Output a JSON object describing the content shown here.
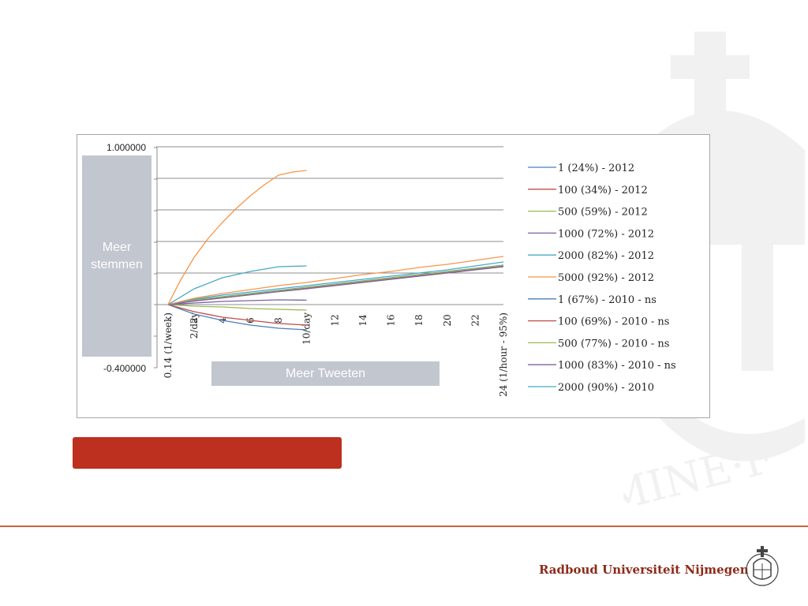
{
  "chart_data": {
    "type": "line",
    "x_tick_labels_upright": [
      "2",
      "4",
      "6",
      "8",
      "12",
      "14",
      "16",
      "18",
      "20",
      "22"
    ],
    "x_tick_labels_rotated": [
      "0.14 (1/week)",
      "2/day",
      "10/day",
      "24 (1/hour - 95%)"
    ],
    "ylabel_top": "1.000000",
    "ylabel_bottom": "-0.400000",
    "ylim": [
      -0.4,
      1.0
    ],
    "xlim": [
      0.14,
      24
    ],
    "series": [
      {
        "name": "1 (24%) - 2012",
        "color": "#4a7ebb",
        "x": [
          0.14,
          2,
          4,
          6,
          8,
          10,
          12,
          14,
          16,
          18,
          20,
          22,
          24
        ],
        "y": [
          0,
          0.03,
          0.05,
          0.07,
          0.09,
          0.11,
          0.13,
          0.15,
          0.17,
          0.19,
          0.21,
          0.23,
          0.25
        ]
      },
      {
        "name": "100 (34%) - 2012",
        "color": "#be4b48",
        "x": [
          0.14,
          2,
          4,
          6,
          8,
          10,
          12,
          14,
          16,
          18,
          20,
          22,
          24
        ],
        "y": [
          0,
          0.025,
          0.045,
          0.065,
          0.085,
          0.105,
          0.125,
          0.145,
          0.165,
          0.185,
          0.205,
          0.225,
          0.245
        ]
      },
      {
        "name": "500 (59%) - 2012",
        "color": "#98b954",
        "x": [
          0.14,
          2,
          4,
          6,
          8,
          10,
          12,
          14,
          16,
          18,
          20,
          22,
          24
        ],
        "y": [
          0,
          0.028,
          0.048,
          0.068,
          0.088,
          0.108,
          0.128,
          0.148,
          0.168,
          0.188,
          0.208,
          0.228,
          0.248
        ]
      },
      {
        "name": "1000 (72%) - 2012",
        "color": "#7d60a0",
        "x": [
          0.14,
          2,
          4,
          6,
          8,
          10,
          12,
          14,
          16,
          18,
          20,
          22,
          24
        ],
        "y": [
          0,
          0.022,
          0.042,
          0.062,
          0.082,
          0.1,
          0.12,
          0.14,
          0.16,
          0.18,
          0.2,
          0.22,
          0.24
        ]
      },
      {
        "name": "2000 (82%) - 2012",
        "color": "#46aac5",
        "x": [
          0.14,
          2,
          4,
          6,
          8,
          10,
          12,
          14,
          16,
          18,
          20,
          22,
          24
        ],
        "y": [
          0,
          0.035,
          0.06,
          0.08,
          0.1,
          0.12,
          0.14,
          0.16,
          0.18,
          0.2,
          0.22,
          0.245,
          0.27
        ]
      },
      {
        "name": "5000 (92%) - 2012",
        "color": "#f79646",
        "x": [
          0.14,
          2,
          4,
          6,
          8,
          10,
          12,
          14,
          16,
          18,
          20,
          22,
          24
        ],
        "y": [
          0,
          0.04,
          0.07,
          0.095,
          0.12,
          0.14,
          0.165,
          0.19,
          0.21,
          0.235,
          0.255,
          0.28,
          0.305
        ]
      },
      {
        "name": "1 (67%) - 2010 - ns",
        "color": "#4a7ebb",
        "x": [
          0.14,
          2,
          4,
          6,
          8,
          10
        ],
        "y": [
          0,
          -0.06,
          -0.1,
          -0.13,
          -0.15,
          -0.16
        ]
      },
      {
        "name": "100 (69%) - 2010 - ns",
        "color": "#be4b48",
        "x": [
          0.14,
          2,
          4,
          6,
          8,
          10
        ],
        "y": [
          0,
          -0.045,
          -0.08,
          -0.1,
          -0.12,
          -0.13
        ]
      },
      {
        "name": "500 (77%) - 2010 - ns",
        "color": "#98b954",
        "x": [
          0.14,
          2,
          4,
          6,
          8,
          10
        ],
        "y": [
          0,
          -0.01,
          -0.015,
          -0.025,
          -0.03,
          -0.035
        ]
      },
      {
        "name": "1000 (83%) - 2010 - ns",
        "color": "#7d60a0",
        "x": [
          0.14,
          2,
          4,
          6,
          8,
          10
        ],
        "y": [
          0,
          0.01,
          0.02,
          0.025,
          0.03,
          0.028
        ]
      },
      {
        "name": "2000 (90%) - 2010",
        "color": "#46aac5",
        "x": [
          0.14,
          2,
          4,
          6,
          8,
          10
        ],
        "y": [
          0,
          0.1,
          0.17,
          0.21,
          0.24,
          0.245
        ]
      },
      {
        "name": "",
        "color": "#f79646",
        "x": [
          0.14,
          1,
          2,
          3,
          4,
          5,
          6,
          7,
          8,
          9,
          10
        ],
        "y": [
          0,
          0.15,
          0.3,
          0.42,
          0.52,
          0.61,
          0.69,
          0.76,
          0.82,
          0.84,
          0.85
        ]
      }
    ],
    "grid": true,
    "legend_position": "right"
  },
  "annotations": {
    "vertical": "Meer stemmen",
    "horizontal": "Meer Tweeten"
  },
  "footer": {
    "brand": "Radboud Universiteit Nijmegen",
    "accent": "#bd2f1e",
    "line_color": "#c8643c"
  }
}
